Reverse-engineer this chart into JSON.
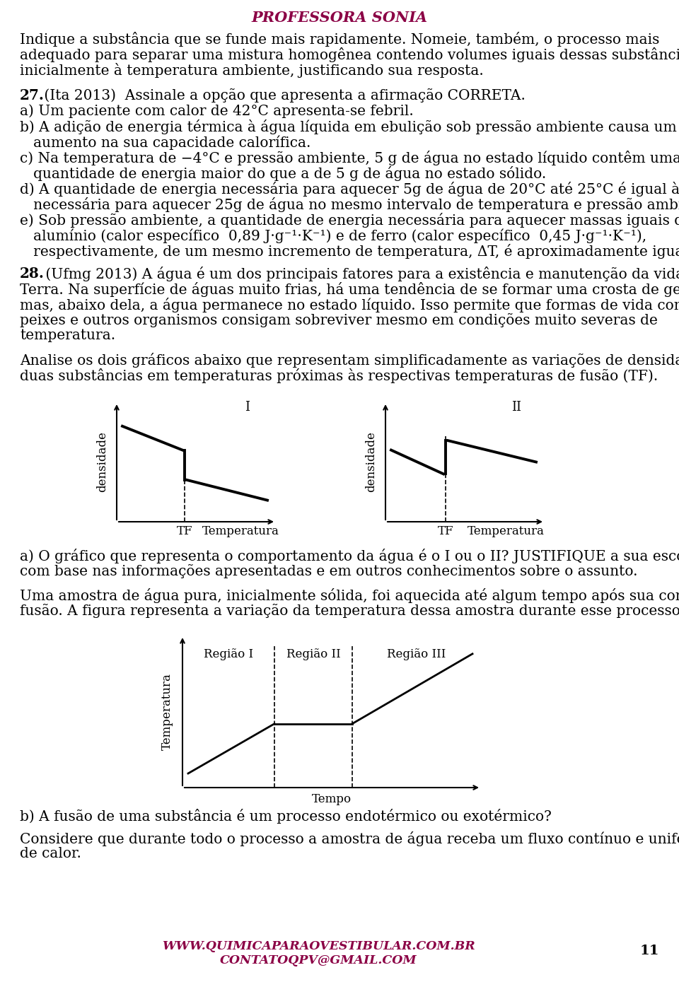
{
  "bg_color": "#ffffff",
  "title": "PROFESSORA SONIA",
  "title_color": "#8B0045",
  "footer_url": "WWW.QUIMICAPARAOVESTIBULAR.COM.BR",
  "footer_email": "CONTATOQPV@GMAIL.COM",
  "footer_color": "#8B0045",
  "page_number": "11",
  "body_color": "#000000",
  "paragraph1_lines": [
    "Indique a substância que se funde mais rapidamente. Nomeie, também, o processo mais",
    "adequado para separar uma mistura homogênea contendo volumes iguais dessas substâncias,",
    "inicialmente à temperatura ambiente, justificando sua resposta."
  ],
  "q27_number": "27.",
  "q27_intro": " (Ita 2013)  Assinale a opção que apresenta a afirmação CORRETA.",
  "q27_a_lines": [
    "a) Um paciente com calor de 42°C apresenta-se febril."
  ],
  "q27_b_lines": [
    "b) A adição de energia térmica à água líquida em ebulição sob pressão ambiente causa um",
    "   aumento na sua capacidade calorífica."
  ],
  "q27_c_lines": [
    "c) Na temperatura de −4°C e pressão ambiente, 5 g de água no estado líquido contêm uma",
    "   quantidade de energia maior do que a de 5 g de água no estado sólido."
  ],
  "q27_d_lines": [
    "d) A quantidade de energia necessária para aquecer 5g de água de 20°C até 25°C é igual àquela",
    "   necessária para aquecer 25g de água no mesmo intervalo de temperatura e pressão ambiente."
  ],
  "q27_e_lines": [
    "e) Sob pressão ambiente, a quantidade de energia necessária para aquecer massas iguais de",
    "   alumínio (calor específico  0,89 J·g⁻¹·K⁻¹) e de ferro (calor específico  0,45 J·g⁻¹·K⁻¹),",
    "   respectivamente, de um mesmo incremento de temperatura, ΔT, é aproximadamente igual."
  ],
  "q28_number": "28.",
  "q28_intro_lines": [
    " (Ufmg 2013) A água é um dos principais fatores para a existência e manutenção da vida na",
    "Terra. Na superfície de águas muito frias, há uma tendência de se formar uma crosta de gelo,",
    "mas, abaixo dela, a água permanece no estado líquido. Isso permite que formas de vida como",
    "peixes e outros organismos consigam sobreviver mesmo em condições muito severas de",
    "temperatura."
  ],
  "blank_line": "",
  "q28_analyze_lines": [
    "Analise os dois gráficos abaixo que representam simplificadamente as variações de densidade de",
    "duas substâncias em temperaturas próximas às respectivas temperaturas de fusão (TF)."
  ],
  "graph1_label": "I",
  "graph2_label": "II",
  "graph_xlabel": "Temperatura",
  "graph_tf_label": "TF",
  "graph_ylabel": "densidade",
  "q28_a_lines": [
    "a) O gráfico que representa o comportamento da água é o I ou o II? JUSTIFIQUE a sua escolha",
    "com base nas informações apresentadas e em outros conhecimentos sobre o assunto."
  ],
  "q28_uma_lines": [
    "Uma amostra de água pura, inicialmente sólida, foi aquecida até algum tempo após sua completa",
    "fusão. A figura representa a variação da temperatura dessa amostra durante esse processo."
  ],
  "region1_label": "Região I",
  "region2_label": "Região II",
  "region3_label": "Região III",
  "graph3_xlabel": "Tempo",
  "graph3_ylabel": "Temperatura",
  "q28_b": "b) A fusão de uma substância é um processo endotérmico ou exotérmico?",
  "q28_consider_lines": [
    "Considere que durante todo o processo a amostra de água receba um fluxo contínuo e uniforme",
    "de calor."
  ]
}
